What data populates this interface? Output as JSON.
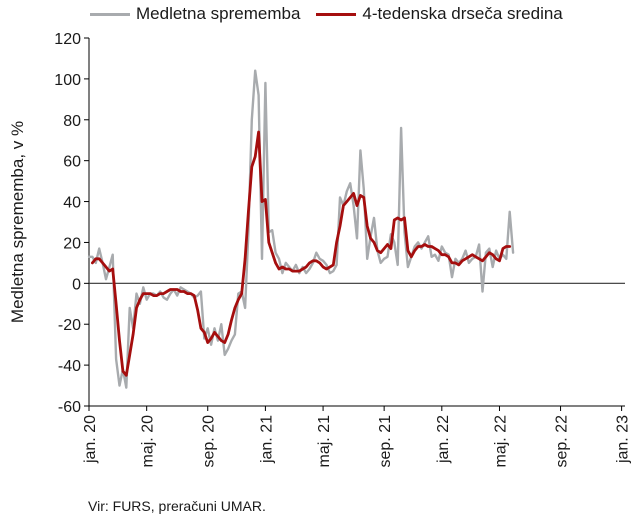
{
  "legend": {
    "series_a_label": "Medletna sprememba",
    "series_b_label": "4-tedenska drseča sredina"
  },
  "source": "Vir: FURS, preračuni UMAR.",
  "chart_data": {
    "type": "line",
    "title": "",
    "xlabel": "",
    "ylabel": "Medletna sprememba, v %",
    "ylim": [
      -60,
      120
    ],
    "yticks": [
      -60,
      -40,
      -20,
      0,
      20,
      40,
      60,
      80,
      100,
      120
    ],
    "x_range_weeks": [
      0,
      158
    ],
    "xticks": [
      {
        "week": 0,
        "label": "jan. 20"
      },
      {
        "week": 17,
        "label": "maj. 20"
      },
      {
        "week": 35,
        "label": "sep. 20"
      },
      {
        "week": 52,
        "label": "jan. 21"
      },
      {
        "week": 69,
        "label": "maj. 21"
      },
      {
        "week": 87,
        "label": "sep. 21"
      },
      {
        "week": 104,
        "label": "jan. 22"
      },
      {
        "week": 121,
        "label": "maj. 22"
      },
      {
        "week": 139,
        "label": "sep. 22"
      },
      {
        "week": 157,
        "label": "jan. 23"
      }
    ],
    "zero_line": true,
    "colors": {
      "series_a": "#a8abae",
      "series_b": "#a50e0e",
      "axis": "#000000",
      "zero": "#333333"
    },
    "series": [
      {
        "name": "Medletna sprememba",
        "points": [
          [
            0,
            13
          ],
          [
            1,
            13
          ],
          [
            2,
            10
          ],
          [
            3,
            17
          ],
          [
            4,
            10
          ],
          [
            5,
            2
          ],
          [
            6,
            8
          ],
          [
            7,
            14
          ],
          [
            8,
            -37
          ],
          [
            9,
            -50
          ],
          [
            10,
            -42
          ],
          [
            11,
            -51
          ],
          [
            12,
            -12
          ],
          [
            13,
            -22
          ],
          [
            14,
            -5
          ],
          [
            15,
            -10
          ],
          [
            16,
            -2
          ],
          [
            17,
            -8
          ],
          [
            18,
            -5
          ],
          [
            19,
            -5
          ],
          [
            20,
            -6
          ],
          [
            21,
            -4
          ],
          [
            22,
            -7
          ],
          [
            23,
            -8
          ],
          [
            24,
            -5
          ],
          [
            25,
            -3
          ],
          [
            26,
            -6
          ],
          [
            27,
            -2
          ],
          [
            28,
            -3
          ],
          [
            29,
            -4
          ],
          [
            30,
            -5
          ],
          [
            31,
            -7
          ],
          [
            32,
            -6
          ],
          [
            33,
            -4
          ],
          [
            34,
            -27
          ],
          [
            35,
            -22
          ],
          [
            36,
            -30
          ],
          [
            37,
            -22
          ],
          [
            38,
            -28
          ],
          [
            39,
            -20
          ],
          [
            40,
            -35
          ],
          [
            41,
            -32
          ],
          [
            42,
            -28
          ],
          [
            43,
            -25
          ],
          [
            44,
            -5
          ],
          [
            45,
            -4
          ],
          [
            46,
            -12
          ],
          [
            47,
            25
          ],
          [
            48,
            80
          ],
          [
            49,
            104
          ],
          [
            50,
            92
          ],
          [
            51,
            12
          ],
          [
            52,
            98
          ],
          [
            53,
            25
          ],
          [
            54,
            26
          ],
          [
            55,
            15
          ],
          [
            56,
            12
          ],
          [
            57,
            5
          ],
          [
            58,
            10
          ],
          [
            59,
            8
          ],
          [
            60,
            6
          ],
          [
            61,
            9
          ],
          [
            62,
            5
          ],
          [
            63,
            8
          ],
          [
            64,
            5
          ],
          [
            65,
            7
          ],
          [
            66,
            10
          ],
          [
            67,
            15
          ],
          [
            68,
            12
          ],
          [
            69,
            11
          ],
          [
            70,
            9
          ],
          [
            71,
            5
          ],
          [
            72,
            6
          ],
          [
            73,
            9
          ],
          [
            74,
            42
          ],
          [
            75,
            38
          ],
          [
            76,
            45
          ],
          [
            77,
            49
          ],
          [
            78,
            38
          ],
          [
            79,
            22
          ],
          [
            80,
            65
          ],
          [
            81,
            46
          ],
          [
            82,
            12
          ],
          [
            83,
            23
          ],
          [
            84,
            32
          ],
          [
            85,
            16
          ],
          [
            86,
            10
          ],
          [
            87,
            12
          ],
          [
            88,
            13
          ],
          [
            89,
            24
          ],
          [
            90,
            20
          ],
          [
            91,
            9
          ],
          [
            92,
            76
          ],
          [
            93,
            25
          ],
          [
            94,
            8
          ],
          [
            95,
            13
          ],
          [
            96,
            18
          ],
          [
            97,
            20
          ],
          [
            98,
            17
          ],
          [
            99,
            20
          ],
          [
            100,
            23
          ],
          [
            101,
            13
          ],
          [
            102,
            14
          ],
          [
            103,
            11
          ],
          [
            104,
            18
          ],
          [
            105,
            15
          ],
          [
            106,
            14
          ],
          [
            107,
            3
          ],
          [
            108,
            12
          ],
          [
            109,
            10
          ],
          [
            110,
            12
          ],
          [
            111,
            16
          ],
          [
            112,
            10
          ],
          [
            113,
            12
          ],
          [
            114,
            13
          ],
          [
            115,
            19
          ],
          [
            116,
            -4
          ],
          [
            117,
            15
          ],
          [
            118,
            17
          ],
          [
            119,
            8
          ],
          [
            120,
            16
          ],
          [
            121,
            12
          ],
          [
            122,
            14
          ],
          [
            123,
            12
          ],
          [
            124,
            35
          ],
          [
            125,
            15
          ]
        ]
      },
      {
        "name": "4-tedenska drseča sredina",
        "points": [
          [
            1,
            10
          ],
          [
            2,
            12
          ],
          [
            3,
            12
          ],
          [
            4,
            10
          ],
          [
            5,
            8
          ],
          [
            6,
            6
          ],
          [
            7,
            7
          ],
          [
            8,
            -10
          ],
          [
            9,
            -28
          ],
          [
            10,
            -43
          ],
          [
            11,
            -45
          ],
          [
            12,
            -35
          ],
          [
            13,
            -25
          ],
          [
            14,
            -12
          ],
          [
            15,
            -8
          ],
          [
            16,
            -5
          ],
          [
            17,
            -5
          ],
          [
            18,
            -5
          ],
          [
            19,
            -6
          ],
          [
            20,
            -6
          ],
          [
            21,
            -5
          ],
          [
            22,
            -5
          ],
          [
            23,
            -4
          ],
          [
            24,
            -3
          ],
          [
            25,
            -3
          ],
          [
            26,
            -3
          ],
          [
            27,
            -4
          ],
          [
            28,
            -4
          ],
          [
            29,
            -5
          ],
          [
            30,
            -5
          ],
          [
            31,
            -6
          ],
          [
            32,
            -13
          ],
          [
            33,
            -22
          ],
          [
            34,
            -24
          ],
          [
            35,
            -29
          ],
          [
            36,
            -27
          ],
          [
            37,
            -24
          ],
          [
            38,
            -26
          ],
          [
            39,
            -28
          ],
          [
            40,
            -29
          ],
          [
            41,
            -25
          ],
          [
            42,
            -18
          ],
          [
            43,
            -12
          ],
          [
            44,
            -8
          ],
          [
            45,
            -5
          ],
          [
            46,
            12
          ],
          [
            47,
            35
          ],
          [
            48,
            57
          ],
          [
            49,
            62
          ],
          [
            50,
            74
          ],
          [
            51,
            40
          ],
          [
            52,
            41
          ],
          [
            53,
            20
          ],
          [
            54,
            15
          ],
          [
            55,
            10
          ],
          [
            56,
            7
          ],
          [
            57,
            8
          ],
          [
            58,
            7
          ],
          [
            59,
            7
          ],
          [
            60,
            6
          ],
          [
            61,
            6
          ],
          [
            62,
            6
          ],
          [
            63,
            7
          ],
          [
            64,
            8
          ],
          [
            65,
            10
          ],
          [
            66,
            11
          ],
          [
            67,
            11
          ],
          [
            68,
            10
          ],
          [
            69,
            8
          ],
          [
            70,
            7
          ],
          [
            71,
            8
          ],
          [
            72,
            9
          ],
          [
            73,
            20
          ],
          [
            74,
            28
          ],
          [
            75,
            38
          ],
          [
            76,
            40
          ],
          [
            77,
            42
          ],
          [
            78,
            44
          ],
          [
            79,
            38
          ],
          [
            80,
            43
          ],
          [
            81,
            42
          ],
          [
            82,
            28
          ],
          [
            83,
            22
          ],
          [
            84,
            20
          ],
          [
            85,
            16
          ],
          [
            86,
            15
          ],
          [
            87,
            17
          ],
          [
            88,
            19
          ],
          [
            89,
            17
          ],
          [
            90,
            31
          ],
          [
            91,
            32
          ],
          [
            92,
            31
          ],
          [
            93,
            32
          ],
          [
            94,
            16
          ],
          [
            95,
            13
          ],
          [
            96,
            16
          ],
          [
            97,
            18
          ],
          [
            98,
            18
          ],
          [
            99,
            19
          ],
          [
            100,
            18
          ],
          [
            101,
            18
          ],
          [
            102,
            17
          ],
          [
            103,
            16
          ],
          [
            104,
            14
          ],
          [
            105,
            14
          ],
          [
            106,
            13
          ],
          [
            107,
            10
          ],
          [
            108,
            10
          ],
          [
            109,
            9
          ],
          [
            110,
            11
          ],
          [
            111,
            12
          ],
          [
            112,
            13
          ],
          [
            113,
            14
          ],
          [
            114,
            13
          ],
          [
            115,
            12
          ],
          [
            116,
            11
          ],
          [
            117,
            13
          ],
          [
            118,
            15
          ],
          [
            119,
            14
          ],
          [
            120,
            12
          ],
          [
            121,
            11
          ],
          [
            122,
            17
          ],
          [
            123,
            18
          ],
          [
            124,
            18
          ]
        ]
      }
    ]
  }
}
